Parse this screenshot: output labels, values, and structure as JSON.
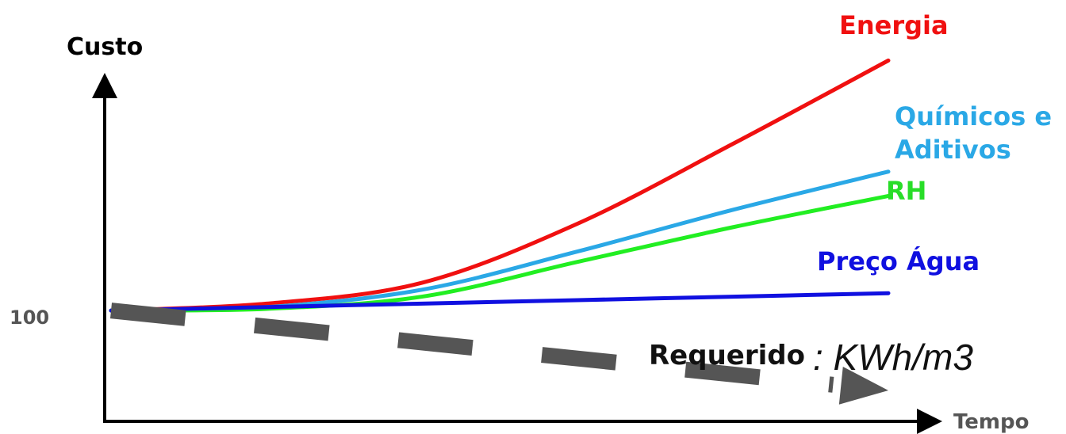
{
  "chart_data": {
    "type": "line",
    "ylabel": "Custo",
    "xlabel": "Tempo",
    "y_tick": "100",
    "series": [
      {
        "name": "Energia",
        "color": "#f01010",
        "points": [
          [
            0,
            100
          ],
          [
            20,
            102
          ],
          [
            40,
            108
          ],
          [
            60,
            125
          ],
          [
            80,
            148
          ],
          [
            100,
            172
          ]
        ]
      },
      {
        "name": "Químicos e Aditivos",
        "color": "#2aa8e6",
        "points": [
          [
            0,
            100
          ],
          [
            20,
            101
          ],
          [
            40,
            106
          ],
          [
            60,
            117
          ],
          [
            80,
            129
          ],
          [
            100,
            140
          ]
        ]
      },
      {
        "name": "RH",
        "color": "#22ee22",
        "points": [
          [
            0,
            100
          ],
          [
            20,
            100.5
          ],
          [
            40,
            104
          ],
          [
            60,
            114
          ],
          [
            80,
            124
          ],
          [
            100,
            133
          ]
        ]
      },
      {
        "name": "Preço Água",
        "color": "#1010e0",
        "points": [
          [
            0,
            100
          ],
          [
            20,
            101
          ],
          [
            40,
            102
          ],
          [
            60,
            103
          ],
          [
            80,
            104
          ],
          [
            100,
            105
          ]
        ]
      }
    ],
    "requirement": {
      "label": "Requerido",
      "unit": ": KWh/m3",
      "color": "#555555",
      "points": [
        [
          0,
          100
        ],
        [
          100,
          77
        ]
      ]
    }
  }
}
